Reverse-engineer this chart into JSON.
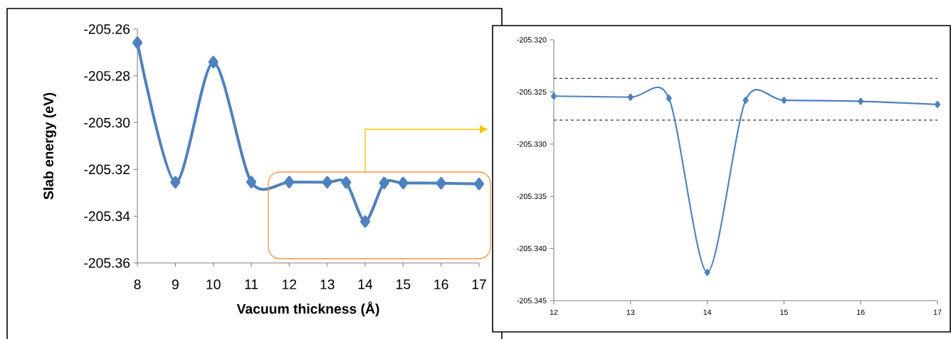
{
  "chart_data": [
    {
      "type": "line",
      "xlabel": "Vacuum thickness (Å)",
      "ylabel": "Slab energy (eV)",
      "x": [
        8,
        9,
        10,
        11,
        12,
        13,
        13.5,
        14,
        14.5,
        15,
        16,
        17
      ],
      "series": [
        {
          "color": "#4f81bd",
          "values": [
            -205.2658,
            -205.3255,
            -205.2741,
            -205.3254,
            -205.3254,
            -205.3255,
            -205.3256,
            -205.3423,
            -205.3258,
            -205.3258,
            -205.3259,
            -205.3262
          ]
        }
      ],
      "xlim": [
        8,
        17
      ],
      "ylim": [
        -205.36,
        -205.26
      ],
      "xticks": [
        8,
        9,
        10,
        11,
        12,
        13,
        14,
        15,
        16,
        17
      ],
      "yticks": [
        {
          "value": -205.36,
          "label": "-205.36"
        },
        {
          "value": -205.34,
          "label": "-205.34"
        },
        {
          "value": -205.32,
          "label": "-205.32"
        },
        {
          "value": -205.3,
          "label": "-205.30"
        },
        {
          "value": -205.28,
          "label": "-205.28"
        },
        {
          "value": -205.26,
          "label": "-205.26"
        }
      ],
      "marker": "diamond",
      "line_style": "solid"
    },
    {
      "type": "line",
      "x": [
        12,
        13,
        13.5,
        14,
        14.5,
        15,
        16,
        17
      ],
      "series": [
        {
          "color": "#4f81bd",
          "values": [
            -205.3254,
            -205.3255,
            -205.3256,
            -205.3423,
            -205.3258,
            -205.3258,
            -205.3259,
            -205.3262
          ]
        }
      ],
      "xlim": [
        12,
        17
      ],
      "ylim": [
        -205.345,
        -205.32
      ],
      "xticks": [
        12,
        13,
        14,
        15,
        16,
        17
      ],
      "yticks": [
        {
          "value": -205.345,
          "label": "-205.345"
        },
        {
          "value": -205.34,
          "label": "-205.340"
        },
        {
          "value": -205.335,
          "label": "-205.335"
        },
        {
          "value": -205.33,
          "label": "-205.330"
        },
        {
          "value": -205.325,
          "label": "-205.325"
        },
        {
          "value": -205.32,
          "label": "-205.320"
        }
      ],
      "ref_lines": [
        {
          "axis": "y",
          "value": -205.3237,
          "color": "#000000",
          "line_style": "dashed"
        },
        {
          "axis": "y",
          "value": -205.3277,
          "color": "#000000",
          "line_style": "dashed"
        }
      ],
      "marker": "diamond",
      "line_style": "solid"
    }
  ]
}
